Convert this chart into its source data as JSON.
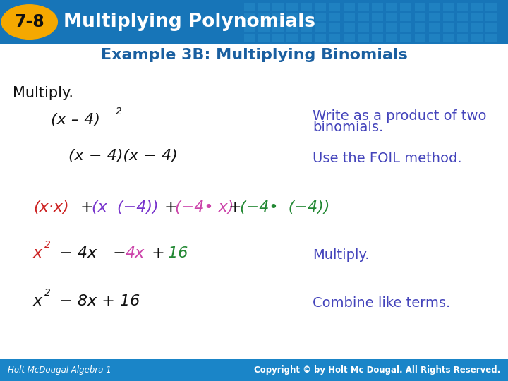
{
  "title_badge_text": "7-8",
  "title_text": "Multiplying Polynomials",
  "header_bg_color": "#1775b8",
  "header_badge_color": "#f5a800",
  "body_bg_color": "#ffffff",
  "subtitle": "Example 3B: Multiplying Binomials",
  "subtitle_color": "#1a5fa0",
  "multiply_label": "Multiply.",
  "footer_bg_color": "#1a85c8",
  "footer_left": "Holt McDougal Algebra 1",
  "footer_right": "Copyright © by Holt Mc Dougal. All Rights Reserved.",
  "note_color": "#4444bb",
  "red_color": "#cc2222",
  "purple_color": "#7733cc",
  "pink_color": "#cc44aa",
  "green_color": "#228833",
  "black_color": "#111111"
}
